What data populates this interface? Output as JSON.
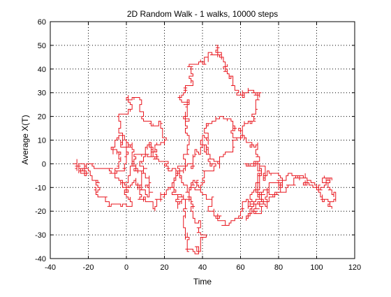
{
  "chart_data": {
    "type": "line",
    "title": "2D Random Walk - 1 walks, 10000 steps",
    "xlabel": "Time",
    "ylabel": "Average X(T)",
    "xlim": [
      -40,
      120
    ],
    "ylim": [
      -40,
      60
    ],
    "xticks": [
      -40,
      -20,
      0,
      20,
      40,
      60,
      80,
      100,
      120
    ],
    "yticks": [
      -40,
      -30,
      -20,
      -10,
      0,
      10,
      20,
      30,
      40,
      50,
      60
    ],
    "grid": true,
    "grid_style": "dotted",
    "steps": 10000,
    "series": [
      {
        "color": "#e8141c",
        "extent": {
          "x": [
            -27,
            110
          ],
          "y": [
            -37,
            51
          ]
        },
        "x": [
          0,
          -6,
          -12,
          -20,
          -27,
          -18,
          -10,
          -3,
          1,
          5,
          7,
          11,
          13,
          9,
          3,
          -2,
          -4,
          0,
          4,
          8,
          14,
          19,
          17,
          13,
          10,
          8,
          10,
          15,
          20,
          26,
          31,
          33,
          31,
          31,
          33,
          35,
          38,
          43,
          48,
          52,
          55,
          58,
          62,
          66,
          70,
          68,
          64,
          60,
          56,
          51,
          47,
          43,
          40,
          40,
          44,
          50,
          56,
          62,
          67,
          70,
          70,
          68,
          64,
          66,
          71,
          77,
          82,
          80,
          74,
          70,
          69,
          65,
          63,
          66,
          73,
          80,
          86,
          93,
          99,
          105,
          110,
          108,
          104,
          100,
          95,
          90,
          84,
          77,
          72,
          66,
          61,
          56,
          52,
          48,
          44,
          40,
          37,
          34,
          31,
          30,
          32,
          36,
          39,
          38,
          34,
          30,
          26,
          24,
          26,
          32,
          37,
          40,
          43,
          44,
          40,
          34,
          28,
          21,
          14,
          8,
          4,
          2,
          -2,
          -6,
          -3,
          0,
          0
        ],
        "y": [
          0,
          -3,
          -2,
          0,
          -1,
          -7,
          -14,
          -18,
          -10,
          -6,
          -9,
          -14,
          -12,
          -4,
          4,
          12,
          20,
          27,
          28,
          22,
          16,
          11,
          8,
          3,
          -2,
          -8,
          -16,
          -20,
          -12,
          -4,
          0,
          6,
          13,
          19,
          25,
          33,
          42,
          46,
          50,
          43,
          36,
          30,
          28,
          31,
          30,
          22,
          18,
          13,
          8,
          4,
          1,
          2,
          8,
          12,
          17,
          20,
          16,
          11,
          8,
          3,
          -4,
          -10,
          -16,
          -20,
          -18,
          -14,
          -8,
          -4,
          -3,
          -6,
          -12,
          -19,
          -24,
          -21,
          -13,
          -8,
          -4,
          -6,
          -10,
          -7,
          -16,
          -19,
          -15,
          -10,
          -7,
          -6,
          -9,
          -13,
          -17,
          -16,
          -20,
          -24,
          -26,
          -24,
          -18,
          -12,
          -8,
          -14,
          -20,
          -27,
          -35,
          -37,
          -30,
          -24,
          -18,
          -14,
          -16,
          -12,
          -5,
          0,
          6,
          10,
          6,
          1,
          -6,
          -10,
          -6,
          -2,
          2,
          4,
          0,
          -4,
          -8,
          -3,
          4,
          10,
          0
        ]
      }
    ]
  }
}
